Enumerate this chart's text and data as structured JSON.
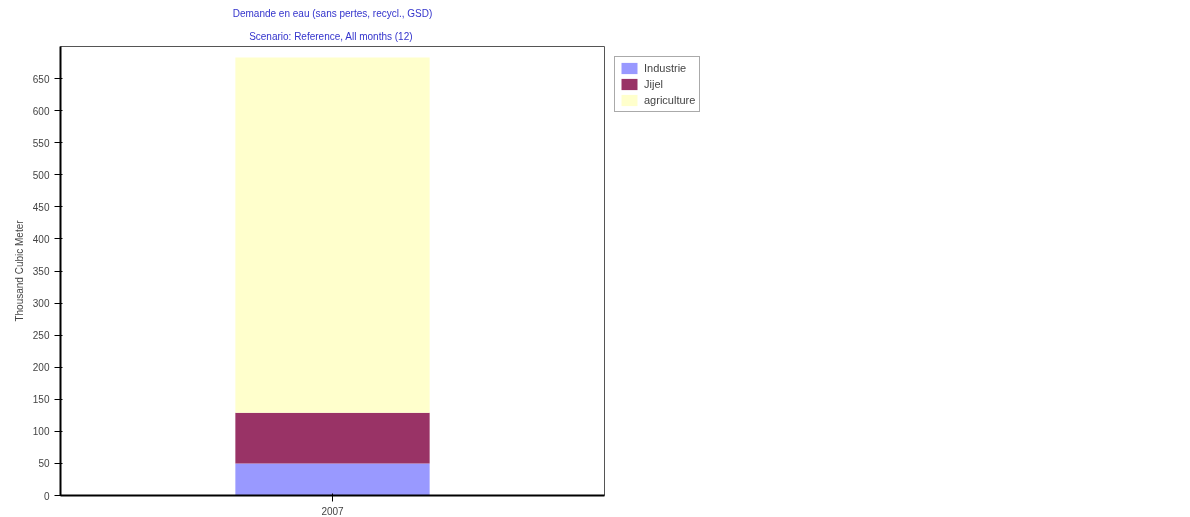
{
  "chart_data": {
    "type": "bar",
    "title": "Demande en eau (sans pertes, recycl., GSD)",
    "subtitle": "Scenario: Reference,  All months (12)",
    "ylabel": "Thousand Cubic Meter",
    "categories": [
      "2007"
    ],
    "stacked": true,
    "series": [
      {
        "name": "Industrie",
        "color": "#9999ff",
        "values": [
          50
        ]
      },
      {
        "name": "Jijel",
        "color": "#993366",
        "values": [
          79
        ]
      },
      {
        "name": "agriculture",
        "color": "#ffffcc",
        "values": [
          554
        ]
      }
    ],
    "ylim": [
      0,
      700
    ],
    "yticks": [
      0,
      50,
      100,
      150,
      200,
      250,
      300,
      350,
      400,
      450,
      500,
      550,
      600,
      650
    ],
    "grid": false,
    "legend": "top right"
  }
}
